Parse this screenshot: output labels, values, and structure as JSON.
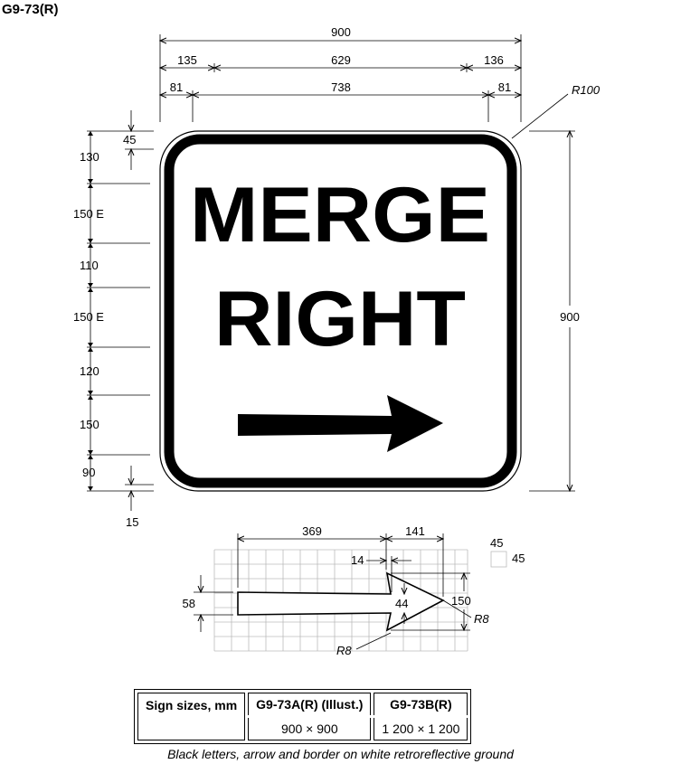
{
  "title": "G9-73(R)",
  "sign": {
    "line1": "MERGE",
    "line2": "RIGHT"
  },
  "dimensions": {
    "overall_width": "900",
    "left_margin": "135",
    "legend_width": "629",
    "right_margin": "136",
    "border_left": "81",
    "inner_width": "738",
    "border_right": "81",
    "corner_radius": "R100",
    "overall_height": "900",
    "v45": "45",
    "v130": "130",
    "v150e_1": "150 E",
    "v110": "110",
    "v150e_2": "150 E",
    "v120": "120",
    "v150": "150",
    "v90": "90",
    "v15": "15"
  },
  "arrow_detail": {
    "shaft_length": "369",
    "head_length": "141",
    "offset": "14",
    "grid_cell_w": "45",
    "grid_cell_h": "45",
    "shaft_height": "58",
    "head_inner": "44",
    "head_height": "150",
    "tip_radius": "R8",
    "notch_radius": "R8"
  },
  "size_table": {
    "header": "Sign sizes, mm",
    "col1_name": "G9-73A(R) (Illust.)",
    "col1_size": "900 × 900",
    "col2_name": "G9-73B(R)",
    "col2_size": "1 200 × 1 200"
  },
  "footnote": "Black letters, arrow and border on white retroreflective ground"
}
